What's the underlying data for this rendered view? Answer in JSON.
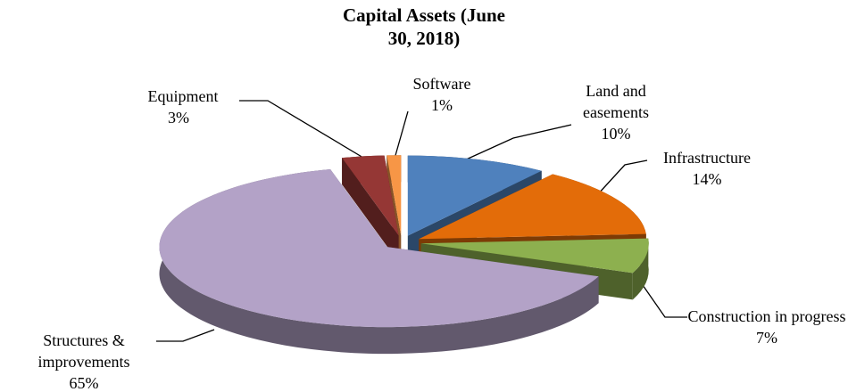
{
  "chart_data": {
    "type": "pie3d",
    "title": "Capital Assets (June 30, 2018)",
    "categories": [
      "Land and easements",
      "Infrastructure",
      "Construction in progress",
      "Structures & improvements",
      "Equipment",
      "Software"
    ],
    "values": [
      10,
      14,
      7,
      65,
      3,
      1
    ],
    "value_labels": [
      "10%",
      "14%",
      "7%",
      "65%",
      "3%",
      "1%"
    ],
    "colors": [
      "#4f81bd",
      "#e36c09",
      "#8db04f",
      "#b3a2c7",
      "#953735",
      "#f79646"
    ]
  }
}
